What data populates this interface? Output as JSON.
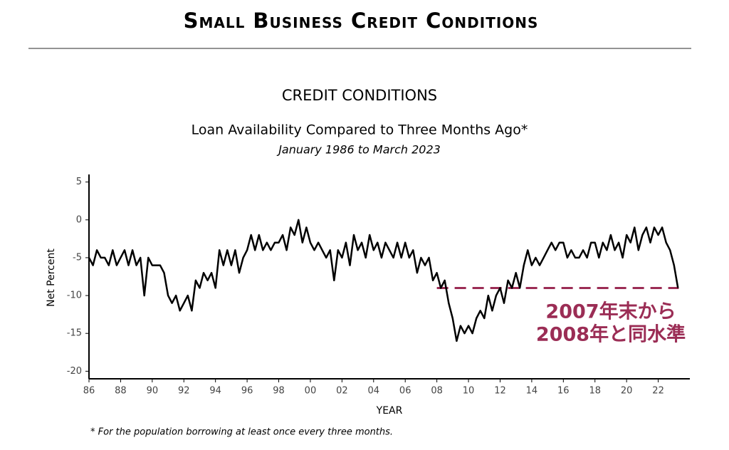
{
  "header": {
    "title": "Small Business Credit Conditions"
  },
  "chart_data": {
    "type": "line",
    "title": "CREDIT CONDITIONS",
    "subtitle": "Loan Availability Compared to Three Months Ago*",
    "period": "January 1986 to March 2023",
    "x_label": "YEAR",
    "y_label": "Net Percent",
    "footnote": "* For the population borrowing at least once every three months.",
    "xlim": [
      1986,
      2024
    ],
    "ylim": [
      -21,
      6
    ],
    "xticks": [
      {
        "value": 1986,
        "label": "86"
      },
      {
        "value": 1988,
        "label": "88"
      },
      {
        "value": 1990,
        "label": "90"
      },
      {
        "value": 1992,
        "label": "92"
      },
      {
        "value": 1994,
        "label": "94"
      },
      {
        "value": 1996,
        "label": "96"
      },
      {
        "value": 1998,
        "label": "98"
      },
      {
        "value": 2000,
        "label": "00"
      },
      {
        "value": 2002,
        "label": "02"
      },
      {
        "value": 2004,
        "label": "04"
      },
      {
        "value": 2006,
        "label": "06"
      },
      {
        "value": 2008,
        "label": "08"
      },
      {
        "value": 2010,
        "label": "10"
      },
      {
        "value": 2012,
        "label": "12"
      },
      {
        "value": 2014,
        "label": "14"
      },
      {
        "value": 2016,
        "label": "16"
      },
      {
        "value": 2018,
        "label": "18"
      },
      {
        "value": 2020,
        "label": "20"
      },
      {
        "value": 2022,
        "label": "22"
      }
    ],
    "yticks": [
      5,
      0,
      -5,
      -10,
      -15,
      -20
    ],
    "x": [
      1986,
      1986.25,
      1986.5,
      1986.75,
      1987,
      1987.25,
      1987.5,
      1987.75,
      1988,
      1988.25,
      1988.5,
      1988.75,
      1989,
      1989.25,
      1989.5,
      1989.75,
      1990,
      1990.25,
      1990.5,
      1990.75,
      1991,
      1991.25,
      1991.5,
      1991.75,
      1992,
      1992.25,
      1992.5,
      1992.75,
      1993,
      1993.25,
      1993.5,
      1993.75,
      1994,
      1994.25,
      1994.5,
      1994.75,
      1995,
      1995.25,
      1995.5,
      1995.75,
      1996,
      1996.25,
      1996.5,
      1996.75,
      1997,
      1997.25,
      1997.5,
      1997.75,
      1998,
      1998.25,
      1998.5,
      1998.75,
      1999,
      1999.25,
      1999.5,
      1999.75,
      2000,
      2000.25,
      2000.5,
      2000.75,
      2001,
      2001.25,
      2001.5,
      2001.75,
      2002,
      2002.25,
      2002.5,
      2002.75,
      2003,
      2003.25,
      2003.5,
      2003.75,
      2004,
      2004.25,
      2004.5,
      2004.75,
      2005,
      2005.25,
      2005.5,
      2005.75,
      2006,
      2006.25,
      2006.5,
      2006.75,
      2007,
      2007.25,
      2007.5,
      2007.75,
      2008,
      2008.25,
      2008.5,
      2008.75,
      2009,
      2009.25,
      2009.5,
      2009.75,
      2010,
      2010.25,
      2010.5,
      2010.75,
      2011,
      2011.25,
      2011.5,
      2011.75,
      2012,
      2012.25,
      2012.5,
      2012.75,
      2013,
      2013.25,
      2013.5,
      2013.75,
      2014,
      2014.25,
      2014.5,
      2014.75,
      2015,
      2015.25,
      2015.5,
      2015.75,
      2016,
      2016.25,
      2016.5,
      2016.75,
      2017,
      2017.25,
      2017.5,
      2017.75,
      2018,
      2018.25,
      2018.5,
      2018.75,
      2019,
      2019.25,
      2019.5,
      2019.75,
      2020,
      2020.25,
      2020.5,
      2020.75,
      2021,
      2021.25,
      2021.5,
      2021.75,
      2022,
      2022.25,
      2022.5,
      2022.75,
      2023,
      2023.25
    ],
    "series": [
      {
        "name": "Net Percent",
        "color": "#000000",
        "values": [
          -5,
          -6,
          -4,
          -5,
          -5,
          -6,
          -4,
          -6,
          -5,
          -4,
          -6,
          -4,
          -6,
          -5,
          -10,
          -5,
          -6,
          -6,
          -6,
          -7,
          -10,
          -11,
          -10,
          -12,
          -11,
          -10,
          -12,
          -8,
          -9,
          -7,
          -8,
          -7,
          -9,
          -4,
          -6,
          -4,
          -6,
          -4,
          -7,
          -5,
          -4,
          -2,
          -4,
          -2,
          -4,
          -3,
          -4,
          -3,
          -3,
          -2,
          -4,
          -1,
          -2,
          0,
          -3,
          -1,
          -3,
          -4,
          -3,
          -4,
          -5,
          -4,
          -8,
          -4,
          -5,
          -3,
          -6,
          -2,
          -4,
          -3,
          -5,
          -2,
          -4,
          -3,
          -5,
          -3,
          -4,
          -5,
          -3,
          -5,
          -3,
          -5,
          -4,
          -7,
          -5,
          -6,
          -5,
          -8,
          -7,
          -9,
          -8,
          -11,
          -13,
          -16,
          -14,
          -15,
          -14,
          -15,
          -13,
          -12,
          -13,
          -10,
          -12,
          -10,
          -9,
          -11,
          -8,
          -9,
          -7,
          -9,
          -6,
          -4,
          -6,
          -5,
          -6,
          -5,
          -4,
          -3,
          -4,
          -3,
          -3,
          -5,
          -4,
          -5,
          -5,
          -4,
          -5,
          -3,
          -3,
          -5,
          -3,
          -4,
          -2,
          -4,
          -3,
          -5,
          -2,
          -3,
          -1,
          -4,
          -2,
          -1,
          -3,
          -1,
          -2,
          -1,
          -3,
          -4,
          -6,
          -9
        ]
      }
    ],
    "reference_line": {
      "value": -9,
      "x": [
        2008,
        2023.3
      ],
      "color": "#9b2d55"
    },
    "annotation": [
      "2007年末から",
      "2008年と同水準"
    ]
  }
}
